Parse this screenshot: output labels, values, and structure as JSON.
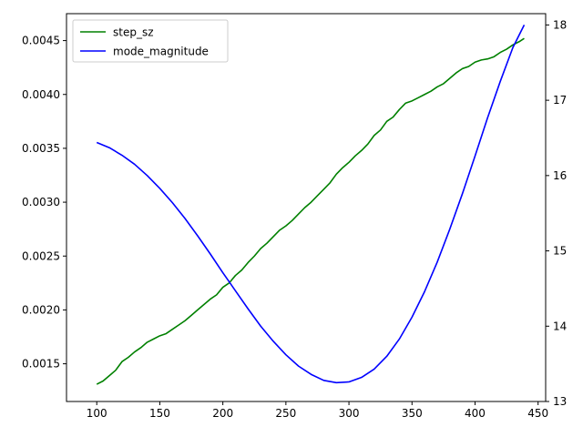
{
  "chart_data": {
    "type": "line",
    "title": "",
    "xlabel": "",
    "ylabel_left": "",
    "ylabel_right": "",
    "xlim": [
      76,
      456
    ],
    "ylim_left": [
      0.00115,
      0.00475
    ],
    "ylim_right": [
      13.0,
      18.15
    ],
    "x_ticks": [
      "100",
      "150",
      "200",
      "250",
      "300",
      "350",
      "400",
      "450"
    ],
    "y_left_ticks": [
      "0.0015",
      "0.0020",
      "0.0025",
      "0.0030",
      "0.0035",
      "0.0040",
      "0.0045"
    ],
    "y_right_ticks": [
      "13",
      "14",
      "15",
      "16",
      "17",
      "18"
    ],
    "grid": false,
    "legend_position": "upper-left",
    "series": [
      {
        "name": "step_sz",
        "axis": "left",
        "color": "#008000",
        "x": [
          100,
          105,
          110,
          115,
          120,
          125,
          130,
          135,
          140,
          145,
          150,
          155,
          160,
          165,
          170,
          175,
          180,
          185,
          190,
          195,
          200,
          205,
          210,
          215,
          220,
          225,
          230,
          235,
          240,
          245,
          250,
          255,
          260,
          265,
          270,
          275,
          280,
          285,
          290,
          295,
          300,
          305,
          310,
          315,
          320,
          325,
          330,
          335,
          340,
          345,
          350,
          355,
          360,
          365,
          370,
          375,
          380,
          385,
          390,
          395,
          400,
          405,
          410,
          415,
          420,
          425,
          430,
          435,
          439
        ],
        "values": [
          0.00131,
          0.00134,
          0.00139,
          0.00144,
          0.00152,
          0.00156,
          0.00161,
          0.00165,
          0.0017,
          0.00173,
          0.00176,
          0.00178,
          0.00182,
          0.00186,
          0.0019,
          0.00195,
          0.002,
          0.00205,
          0.0021,
          0.00214,
          0.00221,
          0.00225,
          0.00232,
          0.00237,
          0.00244,
          0.0025,
          0.00257,
          0.00262,
          0.00268,
          0.00274,
          0.00278,
          0.00283,
          0.00289,
          0.00295,
          0.003,
          0.00306,
          0.00312,
          0.00318,
          0.00326,
          0.00332,
          0.00337,
          0.00343,
          0.00348,
          0.00354,
          0.00362,
          0.00367,
          0.00375,
          0.00379,
          0.00386,
          0.00392,
          0.00394,
          0.00397,
          0.004,
          0.00403,
          0.00407,
          0.0041,
          0.00415,
          0.0042,
          0.00424,
          0.00426,
          0.0043,
          0.00432,
          0.00433,
          0.00435,
          0.00439,
          0.00442,
          0.00446,
          0.00449,
          0.00452
        ]
      },
      {
        "name": "mode_magnitude",
        "axis": "right",
        "color": "#0000ff",
        "x": [
          100,
          110,
          120,
          130,
          140,
          150,
          160,
          170,
          180,
          190,
          200,
          210,
          220,
          230,
          240,
          250,
          260,
          270,
          280,
          290,
          300,
          310,
          320,
          330,
          340,
          350,
          360,
          370,
          380,
          390,
          400,
          410,
          420,
          430,
          439
        ],
        "values": [
          16.44,
          16.37,
          16.27,
          16.15,
          16.0,
          15.83,
          15.64,
          15.43,
          15.2,
          14.96,
          14.71,
          14.47,
          14.23,
          14.0,
          13.8,
          13.62,
          13.47,
          13.36,
          13.28,
          13.25,
          13.26,
          13.32,
          13.43,
          13.6,
          13.83,
          14.12,
          14.46,
          14.85,
          15.29,
          15.76,
          16.26,
          16.77,
          17.25,
          17.7,
          18.0
        ]
      }
    ]
  }
}
